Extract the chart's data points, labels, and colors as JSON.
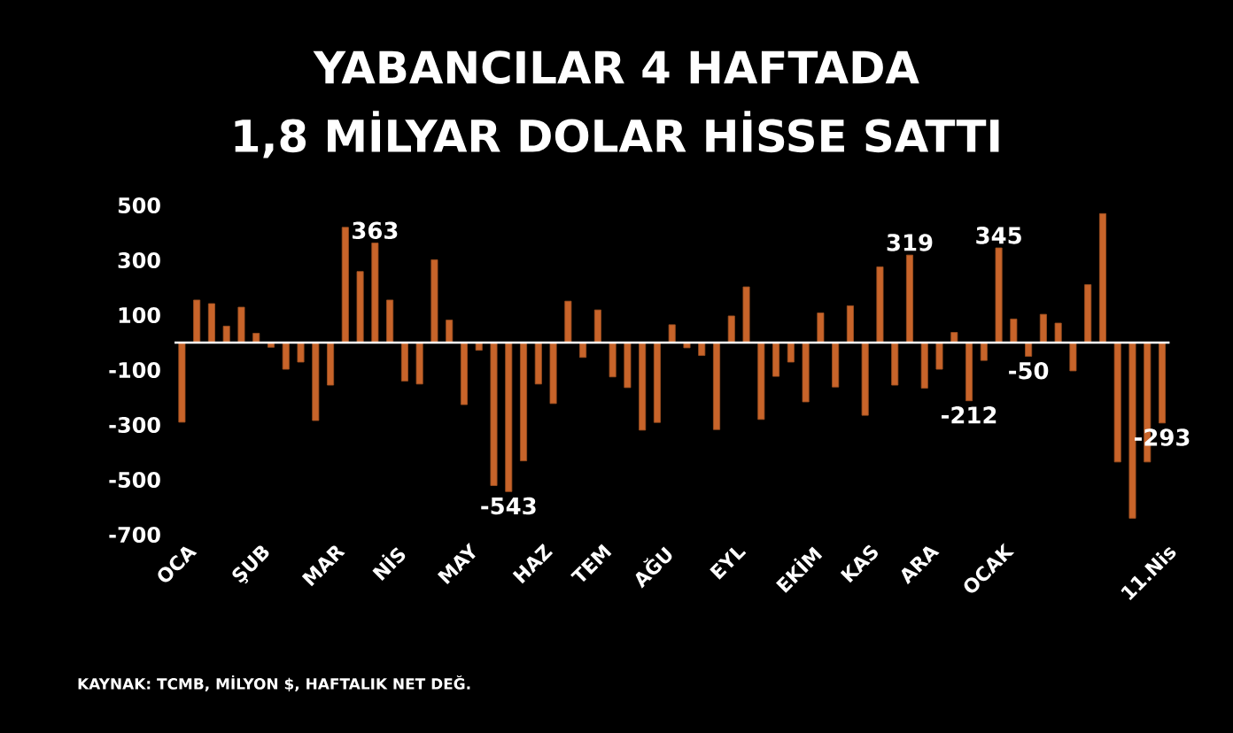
{
  "chart_data": {
    "type": "bar",
    "title": "YABANCILAR 4 HAFTADA",
    "subtitle": "1,8 MİLYAR DOLAR HİSSE SATTI",
    "categories": [
      "OCA",
      null,
      null,
      null,
      null,
      "ŞUB",
      null,
      null,
      null,
      null,
      "MAR",
      null,
      null,
      null,
      "NİS",
      null,
      null,
      null,
      null,
      "MAY",
      null,
      null,
      null,
      null,
      "HAZ",
      null,
      null,
      null,
      "TEM",
      null,
      null,
      null,
      "AĞU",
      null,
      null,
      null,
      null,
      "EYL",
      null,
      null,
      null,
      null,
      "EKİM",
      null,
      null,
      null,
      "KAS",
      null,
      null,
      null,
      "ARA",
      null,
      null,
      null,
      null,
      "OCAK",
      null,
      null,
      null,
      null,
      null,
      null,
      null,
      null,
      null,
      null,
      "11.Nis"
    ],
    "values": [
      -290,
      155,
      142,
      60,
      129,
      34,
      -17,
      -97,
      -71,
      -284,
      -155,
      420,
      259,
      363,
      155,
      -140,
      -151,
      302,
      82,
      -226,
      -28,
      -521,
      -543,
      -431,
      -151,
      -222,
      151,
      -54,
      119,
      -125,
      -164,
      -319,
      -291,
      65,
      -19,
      -47,
      -317,
      97,
      203,
      -280,
      -123,
      -71,
      -216,
      108,
      -162,
      134,
      -265,
      276,
      -155,
      319,
      -166,
      -97,
      37,
      -212,
      -65,
      345,
      86,
      -50,
      103,
      71,
      -103,
      211,
      470,
      -435,
      -640,
      -435,
      -293
    ],
    "value_labels": [
      null,
      null,
      null,
      null,
      null,
      null,
      null,
      null,
      null,
      null,
      null,
      null,
      null,
      "363",
      null,
      null,
      null,
      null,
      null,
      null,
      null,
      null,
      "-543",
      null,
      null,
      null,
      null,
      null,
      null,
      null,
      null,
      null,
      null,
      null,
      null,
      null,
      null,
      null,
      null,
      null,
      null,
      null,
      null,
      null,
      null,
      null,
      null,
      null,
      null,
      "319",
      null,
      null,
      null,
      "-212",
      null,
      "345",
      null,
      "-50",
      null,
      null,
      null,
      null,
      null,
      null,
      null,
      null,
      "-293"
    ],
    "color": "#c8642a",
    "ylim": [
      -700,
      500
    ],
    "yticks": [
      -700,
      -500,
      -300,
      -100,
      100,
      300,
      500
    ],
    "annotations": [
      "KAYNAK: TCMB, MİLYON $, HAFTALIK NET DEĞ."
    ]
  }
}
